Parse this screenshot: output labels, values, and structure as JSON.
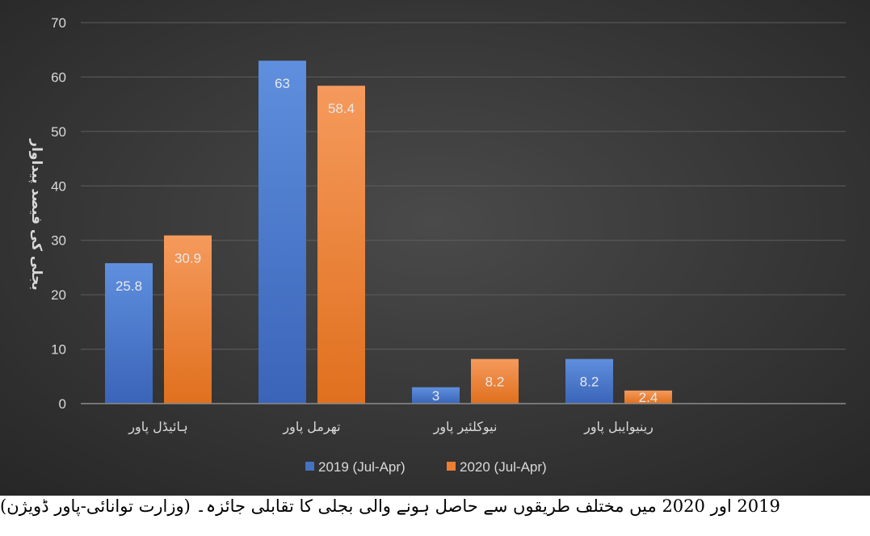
{
  "chart_data": {
    "type": "bar",
    "ylabel": "بجلی کی فیصد پیداوار",
    "categories": [
      "ہائیڈل پاور",
      "تھرمل پاور",
      "نیوکلئیر پاور",
      "رینیوایبل پاور"
    ],
    "series": [
      {
        "name": "2019 (Jul-Apr)",
        "color": "#4472c4",
        "values": [
          25.8,
          63,
          3,
          8.2
        ],
        "labels": [
          "25.8",
          "63",
          "3",
          "8.2"
        ]
      },
      {
        "name": "2020 (Jul-Apr)",
        "color": "#ed7d31",
        "values": [
          30.9,
          58.4,
          8.2,
          2.4
        ],
        "labels": [
          "30.9",
          "58.4",
          "8.2",
          "2.4"
        ]
      }
    ],
    "ylim": [
      0,
      70
    ],
    "yticks": [
      0,
      10,
      20,
      30,
      40,
      50,
      60,
      70
    ],
    "grid": true,
    "legend_position": "bottom",
    "background": "#3a3a3a"
  },
  "caption": "2019  اور 2020 میں مختلف طریقوں سے حاصل ہونے والی بجلی کا تقابلی جائزہ۔ (وزارت توانائی-پاور ڈویژن)"
}
